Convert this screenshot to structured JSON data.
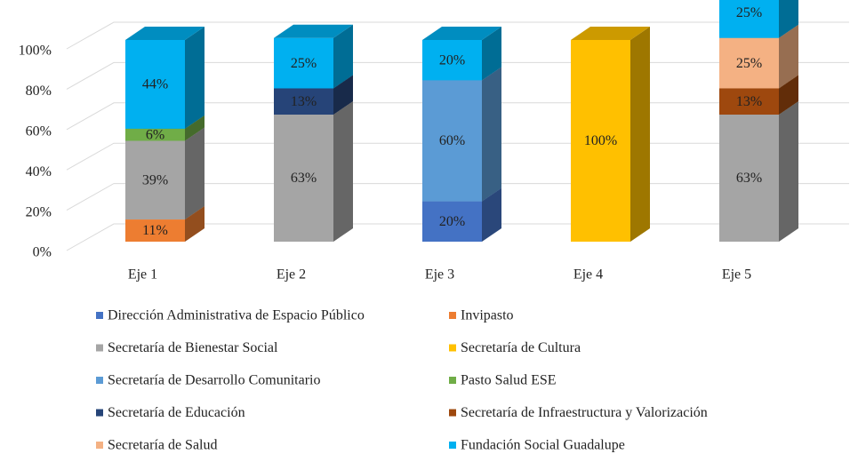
{
  "chart_data": {
    "type": "bar3d_stacked",
    "categories": [
      "Eje 1",
      "Eje 2",
      "Eje 3",
      "Eje 4",
      "Eje 5"
    ],
    "series": [
      {
        "name": "Dirección Administrativa de Espacio Público",
        "color": "#4472c4",
        "values": [
          null,
          null,
          20,
          null,
          null
        ],
        "value_labels": [
          null,
          null,
          "20%",
          null,
          null
        ]
      },
      {
        "name": "Invipasto",
        "color": "#ed7d31",
        "values": [
          11,
          null,
          null,
          null,
          null
        ],
        "value_labels": [
          "11%",
          null,
          null,
          null,
          null
        ]
      },
      {
        "name": "Secretaría de Bienestar Social",
        "color": "#a5a5a5",
        "values": [
          39,
          63,
          null,
          null,
          63
        ],
        "value_labels": [
          "39%",
          "63%",
          null,
          null,
          "63%"
        ]
      },
      {
        "name": "Secretaría de Cultura",
        "color": "#ffc000",
        "values": [
          null,
          null,
          null,
          100,
          null
        ],
        "value_labels": [
          null,
          null,
          null,
          "100%",
          null
        ]
      },
      {
        "name": "Secretaría de Desarrollo Comunitario",
        "color": "#5b9bd5",
        "values": [
          null,
          null,
          60,
          null,
          null
        ],
        "value_labels": [
          null,
          null,
          "60%",
          null,
          null
        ]
      },
      {
        "name": "Pasto Salud ESE",
        "color": "#70ad47",
        "values": [
          6,
          null,
          null,
          null,
          null
        ],
        "value_labels": [
          "6%",
          null,
          null,
          null,
          null
        ]
      },
      {
        "name": "Secretaría de Educación",
        "color": "#264478",
        "values": [
          null,
          13,
          null,
          null,
          null
        ],
        "value_labels": [
          null,
          "13%",
          null,
          null,
          null
        ]
      },
      {
        "name": "Secretaría de Infraestructura y Valorización",
        "color": "#9e480e",
        "values": [
          null,
          null,
          null,
          null,
          13
        ],
        "value_labels": [
          null,
          null,
          null,
          null,
          "13%"
        ]
      },
      {
        "name": "Secretaría de Salud",
        "color": "#f4b183",
        "values": [
          null,
          null,
          null,
          null,
          25
        ],
        "value_labels": [
          null,
          null,
          null,
          null,
          "25%"
        ]
      },
      {
        "name": "Fundación Social Guadalupe",
        "color": "#00b0f0",
        "values": [
          44,
          25,
          20,
          null,
          25
        ],
        "value_labels": [
          "44%",
          "25%",
          "20%",
          null,
          "25%"
        ]
      }
    ],
    "ylim": [
      0,
      100
    ],
    "yticks": [
      {
        "value": 0,
        "label": "0%"
      },
      {
        "value": 20,
        "label": "20%"
      },
      {
        "value": 40,
        "label": "40%"
      },
      {
        "value": 60,
        "label": "60%"
      },
      {
        "value": 80,
        "label": "80%"
      },
      {
        "value": 100,
        "label": "100%"
      }
    ],
    "grid": true
  }
}
